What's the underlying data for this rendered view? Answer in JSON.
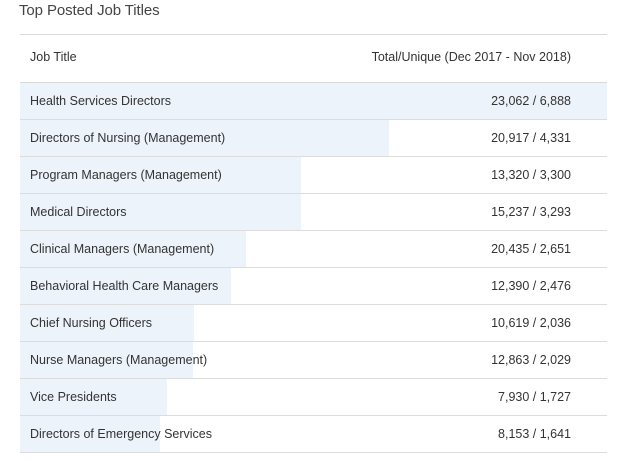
{
  "title": "Top Posted Job Titles",
  "table": {
    "headers": {
      "job_title": "Job Title",
      "value": "Total/Unique (Dec 2017 - Nov 2018)"
    },
    "rows": [
      {
        "title": "Health Services Directors",
        "value": "23,062 / 6,888",
        "unique": 6888
      },
      {
        "title": "Directors of Nursing (Management)",
        "value": "20,917 / 4,331",
        "unique": 4331
      },
      {
        "title": "Program Managers (Management)",
        "value": "13,320 / 3,300",
        "unique": 3300
      },
      {
        "title": "Medical Directors",
        "value": "15,237 / 3,293",
        "unique": 3293
      },
      {
        "title": "Clinical Managers (Management)",
        "value": "20,435 / 2,651",
        "unique": 2651
      },
      {
        "title": "Behavioral Health Care Managers",
        "value": "12,390 / 2,476",
        "unique": 2476
      },
      {
        "title": "Chief Nursing Officers",
        "value": "10,619 / 2,036",
        "unique": 2036
      },
      {
        "title": "Nurse Managers (Management)",
        "value": "12,863 / 2,029",
        "unique": 2029
      },
      {
        "title": "Vice Presidents",
        "value": "7,930 / 1,727",
        "unique": 1727
      },
      {
        "title": "Directors of Emergency Services",
        "value": "8,153 / 1,641",
        "unique": 1641
      }
    ]
  },
  "colors": {
    "bar": "#edf3fa",
    "border": "#dcdcdc",
    "text": "#333333"
  }
}
